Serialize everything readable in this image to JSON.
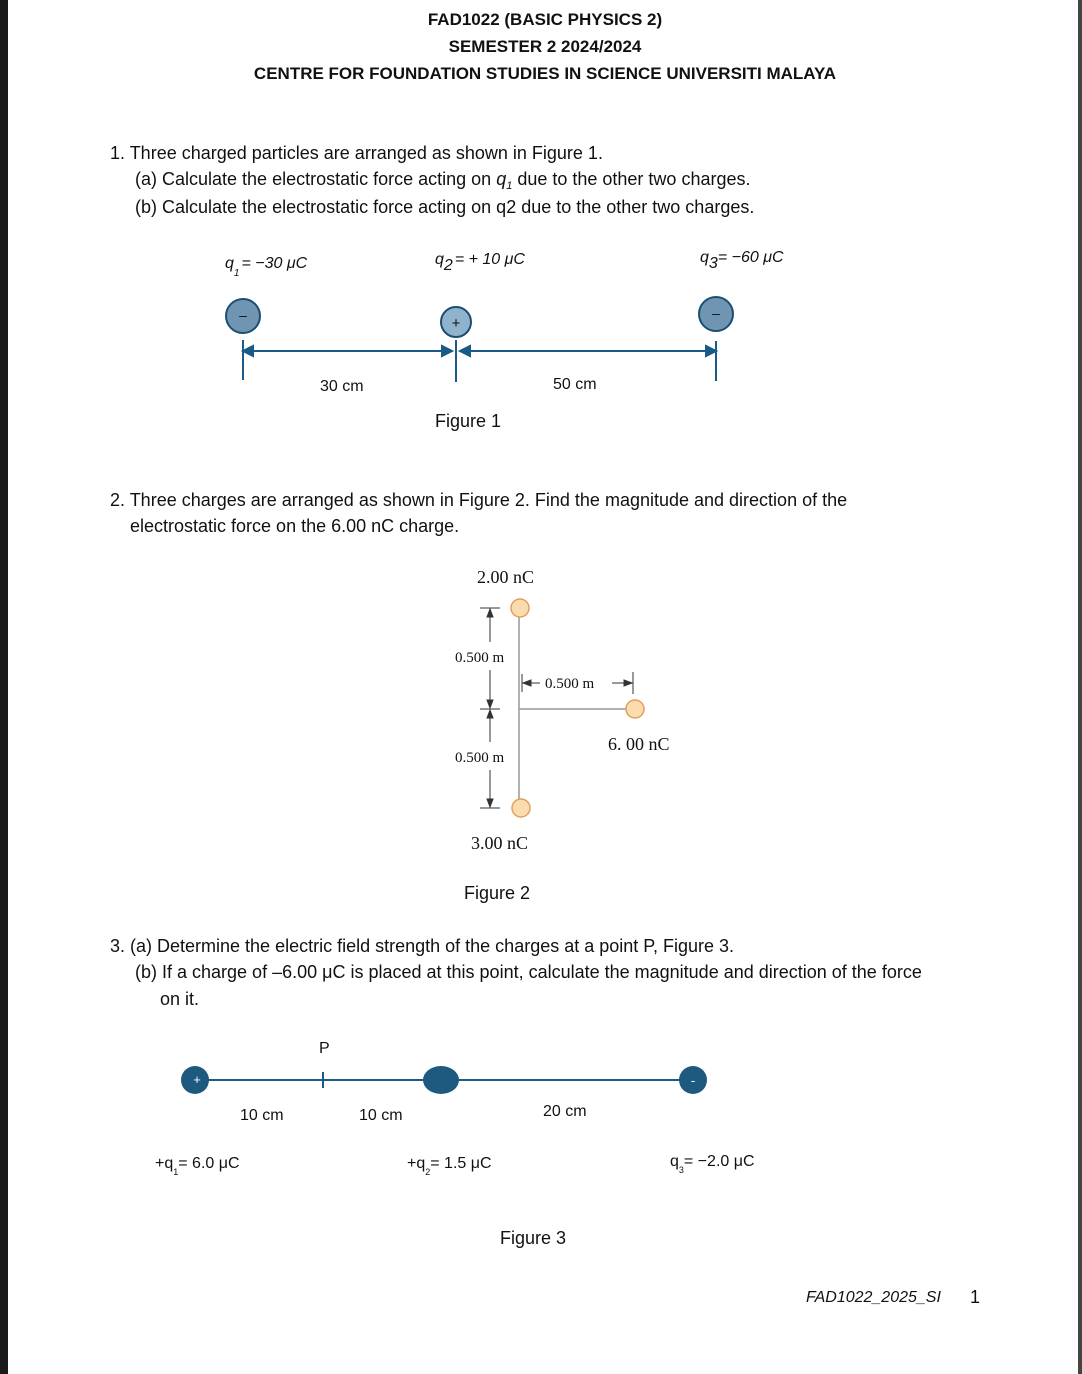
{
  "header": {
    "course": "FAD1022 (BASIC PHYSICS 2)",
    "semester": "SEMESTER 2 2024/2024",
    "centre": "CENTRE FOR FOUNDATION STUDIES IN SCIENCE UNIVERSITI MALAYA"
  },
  "questions": [
    {
      "lines": [
        "1. Three charged particles are arranged as shown in Figure 1."
      ],
      "parts": [
        {
          "before": "(a) Calculate the electrostatic force acting on ",
          "q": "q",
          "sub": "1",
          "after": " due to the other two charges."
        },
        {
          "text": "(b) Calculate the electrostatic force acting on q2 due to the other two charges."
        }
      ],
      "figure": {
        "charges": [
          {
            "q": "q",
            "sub": "1",
            "rest": "= −30 μC",
            "sign": "–"
          },
          {
            "q": "q",
            "sub": "2",
            "rest": "= + 10 μC",
            "sign": "+"
          },
          {
            "q": "q",
            "sub": "3",
            "rest": "= −60 μC",
            "sign": "–"
          }
        ],
        "distances": [
          "30 cm",
          "50 cm"
        ],
        "caption": "Figure 1"
      }
    },
    {
      "lines": [
        "2. Three charges are arranged as shown in Figure 2. Find the magnitude and direction of the",
        "electrostatic force on the 6.00 nC charge."
      ],
      "figure": {
        "charges": [
          "2.00 nC",
          "6. 00 nC",
          "3.00 nC"
        ],
        "distances": [
          "0.500 m",
          "0.500 m",
          "0.500 m"
        ],
        "caption": "Figure 2"
      }
    },
    {
      "lines": [
        "3. (a) Determine the electric field strength of the charges at a point P, Figure 3.",
        "(b) If a charge of –6.00 μC is placed at this point, calculate the magnitude and direction of the force",
        "on it."
      ],
      "figure": {
        "point": "P",
        "charges": [
          {
            "q": "+q",
            "sub": "1",
            "rest": "= 6.0 μC",
            "sign": "+"
          },
          {
            "q": "+q",
            "sub": "2",
            "rest": "= 1.5 μC"
          },
          {
            "q": "q",
            "sub": "3",
            "rest": "= −2.0 μC",
            "sign": "-"
          }
        ],
        "distances": [
          "10 cm",
          "10 cm",
          "20 cm"
        ],
        "caption": "Figure 3"
      }
    }
  ],
  "footer": {
    "code": "FAD1022_2025_SI",
    "page": "1"
  }
}
